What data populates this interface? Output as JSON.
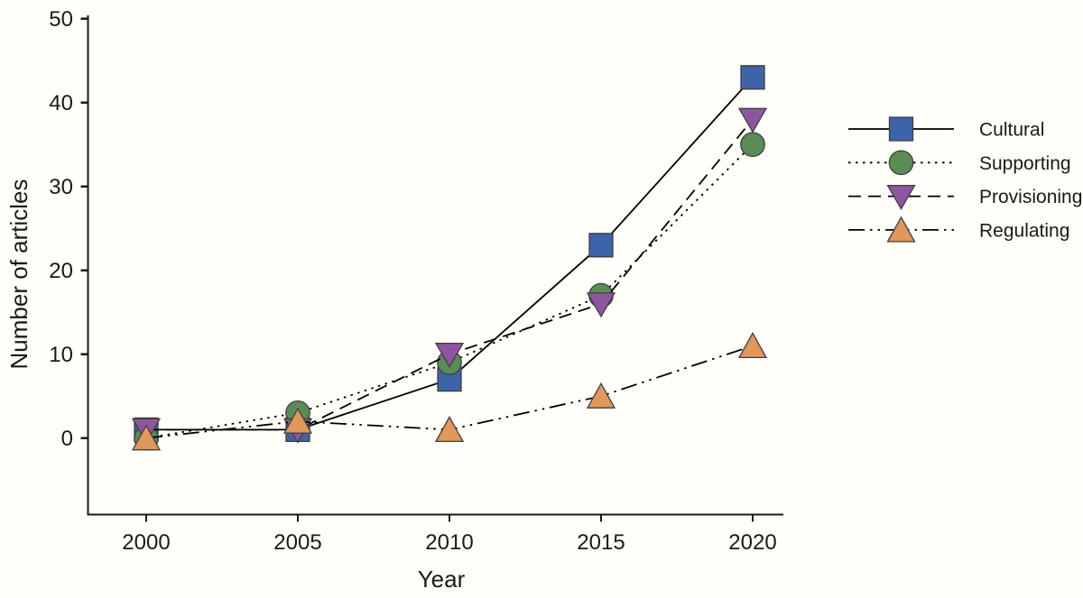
{
  "chart_data": {
    "type": "line",
    "title": "",
    "xlabel": "Year",
    "ylabel": "Number of articles",
    "categories": [
      "2000",
      "2005",
      "2010",
      "2015",
      "2020"
    ],
    "y_ticks": [
      0,
      10,
      20,
      30,
      40,
      50
    ],
    "ylim": [
      -9,
      50
    ],
    "xlim": [
      1998,
      2021
    ],
    "grid": false,
    "legend_position": "right",
    "line_color": "#000000",
    "axis_color": "#1a1a1a",
    "marker_outline_color": "#3F3F3F",
    "series": [
      {
        "name": "Cultural",
        "marker": "square",
        "marker_color": "#3D64A8",
        "line_style": "solid",
        "values": [
          1,
          1,
          7,
          23,
          43
        ]
      },
      {
        "name": "Supporting",
        "marker": "circle",
        "marker_color": "#5A8C55",
        "line_style": "dotted",
        "values": [
          0,
          3,
          9,
          17,
          35
        ]
      },
      {
        "name": "Provisioning",
        "marker": "triangle-down",
        "marker_color": "#8E56A0",
        "line_style": "dashed",
        "values": [
          1,
          1,
          10,
          16,
          38
        ]
      },
      {
        "name": "Regulating",
        "marker": "triangle-up",
        "marker_color": "#E2975B",
        "line_style": "dash-dot-dot",
        "values": [
          0,
          2,
          1,
          5,
          11
        ]
      }
    ]
  }
}
